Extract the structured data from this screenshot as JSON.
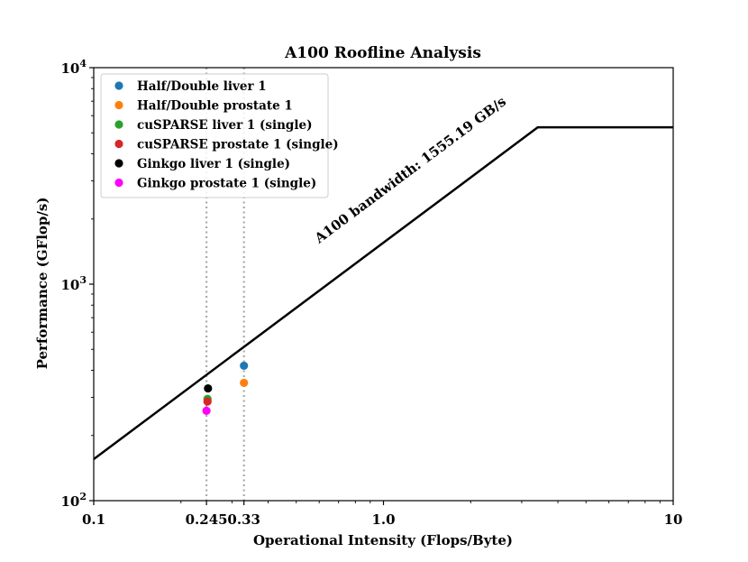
{
  "chart_data": {
    "type": "scatter",
    "title": "A100 Roofline Analysis",
    "xlabel": "Operational Intensity (Flops/Byte)",
    "ylabel": "Performance (GFlop/s)",
    "x_scale": "log",
    "y_scale": "log",
    "xlim": [
      0.1,
      10
    ],
    "ylim": [
      100,
      10000
    ],
    "x_ticks": [
      {
        "value": 0.1,
        "label": "0.1"
      },
      {
        "value": 0.245,
        "label": "0.245"
      },
      {
        "value": 0.33,
        "label": "0.33"
      },
      {
        "value": 1.0,
        "label": "1.0"
      },
      {
        "value": 10,
        "label": "10"
      }
    ],
    "y_ticks": [
      {
        "value": 100,
        "base": "10",
        "exp": "2"
      },
      {
        "value": 1000,
        "base": "10",
        "exp": "3"
      },
      {
        "value": 10000,
        "base": "10",
        "exp": "4"
      }
    ],
    "grid": false,
    "legend_position": "top-left",
    "vertical_reference_lines": [
      0.245,
      0.33
    ],
    "roofline": {
      "bandwidth": 1555.19,
      "peak": 5300,
      "annotation": "A100 bandwidth: 1555.19 GB/s",
      "color": "#000000"
    },
    "series": [
      {
        "name": "Half/Double liver 1",
        "color": "#1f77b4",
        "x": 0.33,
        "y": 420
      },
      {
        "name": "Half/Double prostate 1",
        "color": "#ff7f0e",
        "x": 0.33,
        "y": 350
      },
      {
        "name": "cuSPARSE liver 1 (single)",
        "color": "#2ca02c",
        "x": 0.247,
        "y": 295
      },
      {
        "name": "cuSPARSE prostate 1 (single)",
        "color": "#d62728",
        "x": 0.247,
        "y": 287
      },
      {
        "name": "Ginkgo liver 1 (single)",
        "color": "#000000",
        "x": 0.248,
        "y": 330
      },
      {
        "name": "Ginkgo prostate 1 (single)",
        "color": "#ff00ff",
        "x": 0.245,
        "y": 260
      }
    ]
  }
}
